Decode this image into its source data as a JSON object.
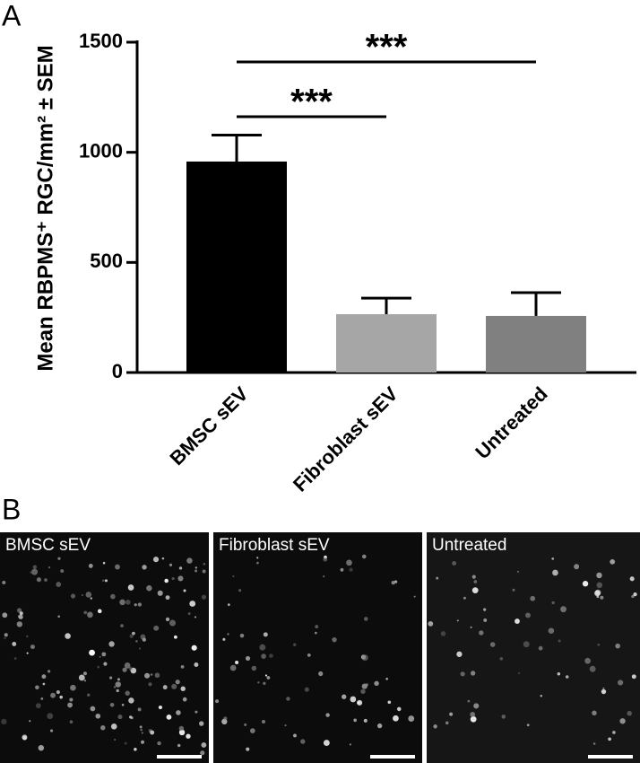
{
  "panel_labels": [
    "A",
    "B"
  ],
  "chart_data": {
    "type": "bar",
    "ylabel": "Mean RBPMS⁺ RGC/mm² ± SEM",
    "categories": [
      "BMSC sEV",
      "Fibroblast sEV",
      "Untreated"
    ],
    "values": [
      958,
      265,
      257
    ],
    "errors": [
      120,
      73,
      106
    ],
    "colors": [
      "#000000",
      "#a6a6a6",
      "#808080"
    ],
    "ylim": [
      0,
      1500
    ],
    "yticks": [
      0,
      500,
      1000,
      1500
    ],
    "significance": [
      {
        "from": 0,
        "to": 1,
        "label": "***"
      },
      {
        "from": 0,
        "to": 2,
        "label": "***"
      }
    ]
  },
  "micrographs": {
    "labels": [
      "BMSC sEV",
      "Fibroblast sEV",
      "Untreated"
    ]
  }
}
